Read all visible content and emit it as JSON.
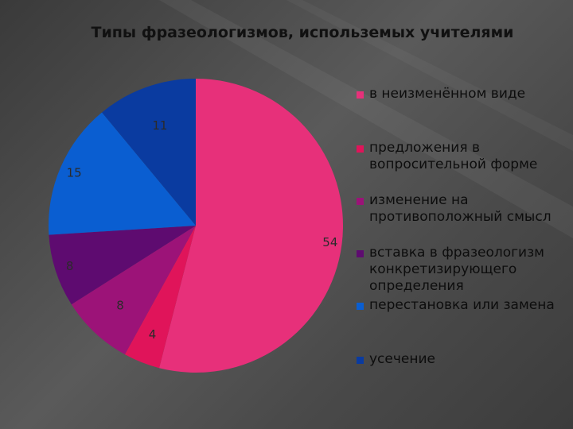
{
  "chart_data": {
    "type": "pie",
    "title": "Типы фразеологизмов, использемых учителями",
    "categories": [
      "в неизменённом виде",
      "предложения в вопросительной форме",
      "изменение на противоположный смысл",
      "вставка в фразеологизм конкретизирующего определения",
      "перестановка или замена",
      "усечение"
    ],
    "values": [
      54,
      4,
      8,
      8,
      15,
      11
    ],
    "colors": [
      "#E7307A",
      "#E0145A",
      "#9C1378",
      "#5E0B70",
      "#0A5ED1",
      "#0A3BA0"
    ],
    "legend_position": "right",
    "start_angle_deg": 0,
    "direction": "clockwise"
  }
}
